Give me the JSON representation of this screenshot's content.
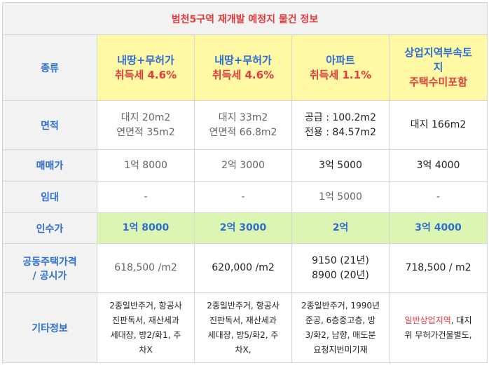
{
  "title": "범천5구역 재개발 예정지 물건 정보",
  "rows": {
    "type": {
      "label": "종류",
      "cells": [
        {
          "name": "내땅+무허가",
          "tax": "취득세 4.6%"
        },
        {
          "name": "내땅+무허가",
          "tax": "취득세 4.6%"
        },
        {
          "name": "아파트",
          "tax": "취득세 1.1%"
        },
        {
          "name_lines": [
            "상업지역부속토",
            "지"
          ],
          "tax": "주택수미포함"
        }
      ]
    },
    "area": {
      "label": "면적",
      "cells": [
        [
          "대지 20m2",
          "연면적 35m2"
        ],
        [
          "대지 33m2",
          "연면적 66.8m2"
        ],
        [
          "공급 : 100.2m2",
          "전용 : 84.57m2"
        ],
        [
          "대지 166m2"
        ]
      ]
    },
    "sale": {
      "label": "매매가",
      "cells": [
        "1억 8000",
        "2억 3000",
        "3억 5000",
        "3억 4000"
      ]
    },
    "rent": {
      "label": "임대",
      "cells": [
        "-",
        "-",
        "1억 5000",
        "-"
      ]
    },
    "takeover": {
      "label": "인수가",
      "cells": [
        "1억 8000",
        "2억 3000",
        "2억",
        "3억 4000"
      ]
    },
    "price": {
      "label_lines": [
        "공동주택가격",
        "/ 공시가"
      ],
      "cells": [
        [
          "618,500 /m2"
        ],
        [
          "620,000 /m2"
        ],
        [
          "9150 (21년)",
          "8900 (20년)"
        ],
        [
          "718,500 / m2"
        ]
      ]
    },
    "etc": {
      "label": "기타정보",
      "cells": [
        [
          "2종일반주거, 항공사",
          "진판독서, 재산세과",
          "세대장, 방2/화1, 주",
          "차X"
        ],
        [
          "2종일반주거, 항공사",
          "진판독서, 재산세과",
          "세대장, 방5/화2, 주",
          "차X,"
        ],
        [
          "2종일반주거, 1990년",
          "준공, 6층중고층, 방",
          "3/화2, 남향, 매도분",
          "요청지번미기재"
        ],
        {
          "highlight": "일반상업지역",
          "rest_first": ", 대지",
          "rest": "위 무허가건물별도,"
        }
      ]
    }
  },
  "colors": {
    "label_blue": "#2d6ed1",
    "title_red": "#e23b3b",
    "yellow": "#fff9a6",
    "green": "#ddf5b3"
  }
}
